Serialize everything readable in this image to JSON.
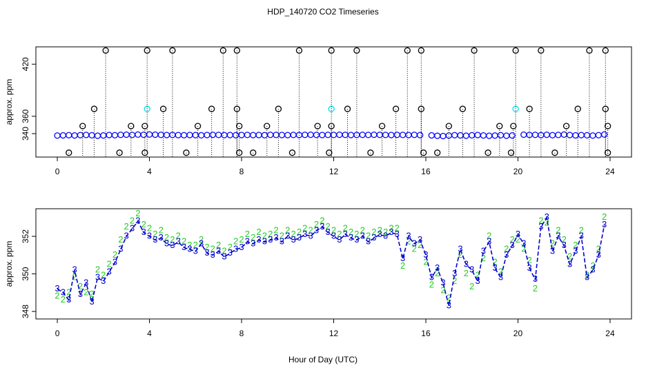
{
  "chart_data": [
    {
      "type": "scatter",
      "title": "HDP_140720  CO2 Timeseries",
      "ylabel": "approx. ppm",
      "xlim": [
        -0.93,
        24.93
      ],
      "xticks": [
        0,
        4,
        8,
        12,
        16,
        20,
        24
      ],
      "ylim": [
        313,
        440
      ],
      "yticks": [
        340,
        360,
        420
      ],
      "x": [
        0,
        0.25,
        0.5,
        0.75,
        1,
        1.25,
        1.5,
        1.75,
        2,
        2.25,
        2.5,
        2.75,
        3,
        3.25,
        3.5,
        3.75,
        4,
        4.25,
        4.5,
        4.75,
        5,
        5.25,
        5.5,
        5.75,
        6,
        6.25,
        6.5,
        6.75,
        7,
        7.25,
        7.5,
        7.75,
        8,
        8.25,
        8.5,
        8.75,
        9,
        9.25,
        9.5,
        9.75,
        10,
        10.25,
        10.5,
        10.75,
        11,
        11.25,
        11.5,
        11.75,
        12,
        12.25,
        12.5,
        12.75,
        13,
        13.25,
        13.5,
        13.75,
        14,
        14.25,
        14.5,
        14.75,
        15,
        15.25,
        15.5,
        15.75,
        16,
        16.25,
        16.5,
        16.75,
        17,
        17.25,
        17.5,
        17.75,
        18,
        18.25,
        18.5,
        18.75,
        19,
        19.25,
        19.5,
        19.75,
        20,
        20.25,
        20.5,
        20.75,
        21,
        21.25,
        21.5,
        21.75,
        22,
        22.25,
        22.5,
        22.75,
        23,
        23.25,
        23.5,
        23.75
      ],
      "series": [
        {
          "color": "#0000ff",
          "values": [
            337.8,
            338.0,
            338.2,
            337.9,
            338.3,
            338.5,
            338.1,
            337.6,
            337.9,
            338.4,
            338.2,
            338.6,
            338.8,
            338.5,
            338.9,
            338.7,
            339.0,
            338.8,
            338.6,
            338.4,
            338.5,
            338.3,
            338.2,
            338.4,
            338.3,
            338.1,
            338.4,
            338.6,
            338.5,
            338.3,
            338.4,
            338.2,
            338.4,
            338.5,
            338.3,
            338.4,
            338.2,
            338.6,
            338.5,
            338.4,
            338.3,
            338.5,
            338.4,
            338.6,
            338.7,
            338.5,
            338.4,
            338.6,
            338.5,
            338.7,
            338.6,
            338.4,
            338.5,
            338.6,
            338.5,
            338.7,
            338.6,
            338.5,
            338.4,
            338.6,
            338.5,
            338.4,
            338.6,
            338.3,
            null,
            338.0,
            337.5,
            337.2,
            337.8,
            338.2,
            338.0,
            337.6,
            338.1,
            338.4,
            337.9,
            337.5,
            337.8,
            338.2,
            337.6,
            337.9,
            null,
            338.8,
            338.5,
            338.6,
            338.3,
            338.7,
            338.2,
            338.5,
            338.9,
            338.4,
            338.0,
            338.3,
            338.1,
            337.8,
            338.2,
            339.0
          ]
        },
        {
          "color": "#00e5ee",
          "x": [
            3.9,
            11.9,
            19.9
          ],
          "values": [
            368.5,
            368.5,
            368.5
          ]
        },
        {
          "color": "#000000",
          "drop_lines": true,
          "x": [
            0.5,
            1.1,
            1.6,
            2.1,
            2.7,
            3.2,
            3.8,
            3.8,
            3.9,
            4.6,
            5.0,
            5.6,
            6.1,
            6.7,
            7.2,
            7.8,
            7.8,
            7.9,
            7.9,
            8.5,
            9.1,
            9.6,
            10.2,
            10.5,
            11.3,
            11.8,
            11.9,
            11.9,
            12.6,
            13.0,
            13.6,
            14.1,
            14.7,
            15.2,
            15.8,
            15.8,
            15.9,
            16.5,
            17.0,
            17.6,
            18.1,
            18.7,
            19.2,
            19.7,
            19.8,
            19.9,
            20.5,
            21.0,
            21.6,
            22.1,
            22.6,
            23.1,
            23.8,
            23.8,
            23.9,
            23.9
          ],
          "values": [
            318,
            348.7,
            368.5,
            435.8,
            318,
            348.7,
            318,
            348.7,
            435.8,
            368.5,
            435.8,
            318,
            348.7,
            368.5,
            435.8,
            435.8,
            368.5,
            348.7,
            318,
            318,
            348.7,
            368.5,
            318,
            435.8,
            348.7,
            318,
            348.7,
            435.8,
            368.5,
            435.8,
            318,
            348.7,
            368.5,
            435.8,
            435.8,
            368.5,
            318,
            318,
            348.7,
            368.5,
            435.8,
            318,
            348.7,
            318,
            348.7,
            435.8,
            368.5,
            435.8,
            318,
            348.7,
            368.5,
            435.8,
            435.8,
            368.5,
            348.7,
            318
          ]
        }
      ]
    },
    {
      "type": "line",
      "ylabel": "approx. ppm",
      "xlabel": "Hour of Day (UTC)",
      "xlim": [
        -0.93,
        24.93
      ],
      "xticks": [
        0,
        4,
        8,
        12,
        16,
        20,
        24
      ],
      "ylim": [
        347.6,
        353.47
      ],
      "yticks": [
        348,
        350,
        352
      ],
      "x": [
        0,
        0.25,
        0.5,
        0.75,
        1,
        1.25,
        1.5,
        1.75,
        2,
        2.25,
        2.5,
        2.75,
        3,
        3.25,
        3.5,
        3.75,
        4,
        4.25,
        4.5,
        4.75,
        5,
        5.25,
        5.5,
        5.75,
        6,
        6.25,
        6.5,
        6.75,
        7,
        7.25,
        7.5,
        7.75,
        8,
        8.25,
        8.5,
        8.75,
        9,
        9.25,
        9.5,
        9.75,
        10,
        10.25,
        10.5,
        10.75,
        11,
        11.25,
        11.5,
        11.75,
        12,
        12.25,
        12.5,
        12.75,
        13,
        13.25,
        13.5,
        13.75,
        14,
        14.25,
        14.5,
        14.75,
        15,
        15.25,
        15.5,
        15.75,
        16,
        16.25,
        16.5,
        16.75,
        17,
        17.25,
        17.5,
        17.75,
        18,
        18.25,
        18.5,
        18.75,
        19,
        19.25,
        19.5,
        19.75,
        20,
        20.25,
        20.5,
        20.75,
        21,
        21.25,
        21.5,
        21.75,
        22,
        22.25,
        22.5,
        22.75,
        23,
        23.25,
        23.5,
        23.75
      ],
      "series": [
        {
          "color": "#22cc22",
          "marker": "2",
          "values": [
            348.8,
            348.6,
            349.0,
            349.8,
            349.3,
            349.0,
            348.9,
            350.2,
            349.9,
            350.5,
            351.0,
            351.8,
            352.5,
            352.8,
            353.2,
            352.6,
            352.4,
            352.1,
            352.3,
            351.9,
            351.8,
            352.0,
            351.7,
            351.5,
            351.5,
            351.8,
            351.4,
            351.3,
            351.5,
            351.2,
            351.4,
            351.7,
            351.8,
            352.1,
            351.9,
            352.2,
            352.0,
            352.1,
            352.3,
            352.0,
            352.3,
            352.1,
            352.2,
            352.4,
            352.3,
            352.6,
            352.8,
            352.5,
            352.3,
            352.1,
            352.4,
            352.2,
            352.1,
            352.3,
            352.0,
            352.2,
            352.3,
            352.2,
            352.4,
            352.4,
            350.4,
            351.7,
            351.3,
            351.5,
            350.6,
            349.4,
            350.0,
            349.1,
            348.7,
            349.6,
            351.0,
            350.0,
            349.3,
            349.9,
            350.8,
            352.0,
            350.6,
            350.1,
            351.3,
            351.8,
            351.8,
            351.3,
            350.7,
            349.2,
            352.8,
            352.7,
            351.6,
            352.3,
            351.8,
            350.9,
            351.5,
            352.3,
            349.9,
            350.4,
            351.3,
            353.0
          ]
        },
        {
          "color": "#0000cc",
          "marker": "3",
          "line": "dashed",
          "values": [
            349.2,
            349.0,
            348.6,
            350.2,
            348.9,
            349.5,
            348.5,
            349.8,
            349.6,
            350.1,
            350.6,
            351.3,
            352.0,
            352.4,
            352.8,
            352.2,
            352.0,
            351.8,
            351.9,
            351.6,
            351.5,
            351.7,
            351.4,
            351.3,
            351.2,
            351.6,
            351.1,
            351.0,
            351.2,
            350.9,
            351.1,
            351.3,
            351.4,
            351.7,
            351.6,
            351.8,
            351.7,
            351.8,
            351.9,
            351.7,
            352.0,
            351.8,
            351.9,
            352.1,
            352.0,
            352.3,
            352.5,
            352.2,
            352.0,
            351.8,
            352.1,
            351.9,
            351.8,
            352.0,
            351.7,
            351.9,
            352.1,
            352.0,
            352.2,
            352.1,
            350.8,
            352.0,
            351.6,
            351.8,
            351.0,
            349.8,
            350.3,
            349.5,
            348.3,
            350.0,
            351.3,
            350.5,
            350.2,
            349.6,
            351.2,
            351.7,
            350.3,
            349.8,
            351.0,
            351.5,
            352.1,
            351.6,
            350.3,
            349.7,
            352.5,
            353.0,
            351.2,
            352.0,
            351.5,
            350.5,
            351.2,
            352.0,
            349.8,
            350.2,
            351.0,
            352.6
          ]
        }
      ]
    }
  ]
}
